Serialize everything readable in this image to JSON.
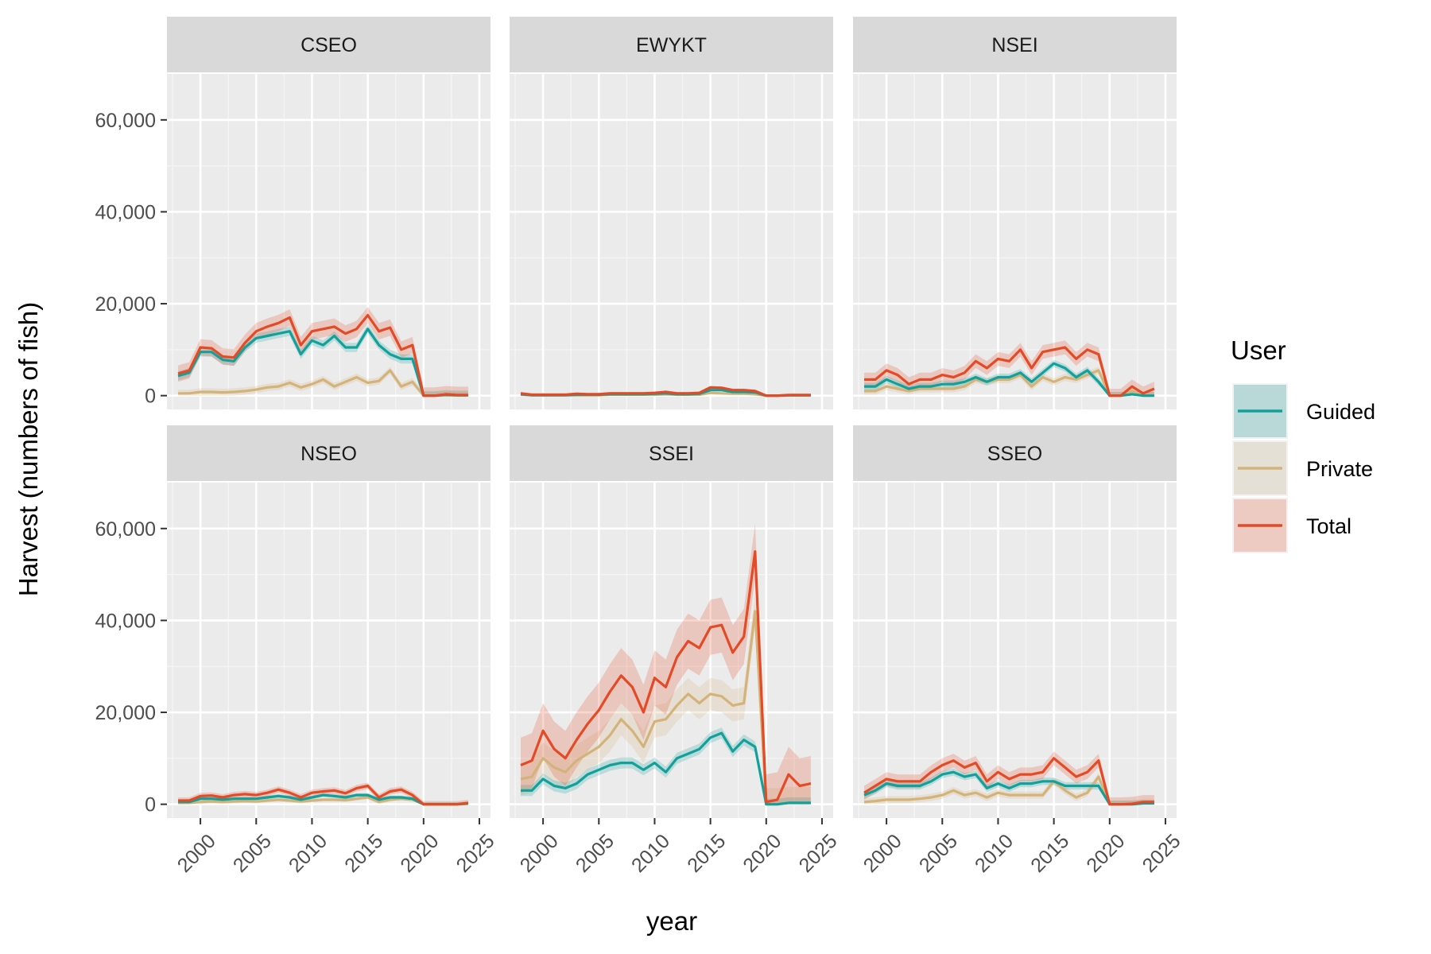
{
  "chart_data": {
    "type": "line",
    "xlabel": "year",
    "ylabel": "Harvest (numbers of fish)",
    "xlim": [
      1997,
      2026
    ],
    "ylim": [
      -3000,
      70000
    ],
    "x_ticks": [
      "2000",
      "2005",
      "2010",
      "2015",
      "2020",
      "2025"
    ],
    "y_ticks": [
      "0",
      "20,000",
      "40,000",
      "60,000"
    ],
    "grid": true,
    "legend": {
      "title": "User",
      "position": "right",
      "entries": [
        {
          "name": "Guided",
          "color": "#12A09A",
          "fill": "#B9D9D9"
        },
        {
          "name": "Private",
          "color": "#D4B37A",
          "fill": "#E4E0D6"
        },
        {
          "name": "Total",
          "color": "#E34A25",
          "fill": "#EDCBC3"
        }
      ]
    },
    "years": [
      1998,
      1999,
      2000,
      2001,
      2002,
      2003,
      2004,
      2005,
      2006,
      2007,
      2008,
      2009,
      2010,
      2011,
      2012,
      2013,
      2014,
      2015,
      2016,
      2017,
      2018,
      2019,
      2020,
      2021,
      2022,
      2023,
      2024
    ],
    "panels": [
      {
        "name": "CSEO",
        "series": [
          {
            "name": "Guided",
            "values": [
              4300,
              5000,
              9500,
              9500,
              7800,
              7500,
              10500,
              12500,
              13000,
              13500,
              14000,
              9000,
              12000,
              11000,
              13000,
              10500,
              10500,
              14500,
              11000,
              9000,
              8000,
              8000,
              0,
              0,
              200,
              100,
              100
            ],
            "band": 1000
          },
          {
            "name": "Private",
            "values": [
              500,
              500,
              800,
              800,
              700,
              800,
              1000,
              1300,
              1800,
              2000,
              2800,
              1800,
              2500,
              3500,
              2000,
              3000,
              4000,
              2800,
              3200,
              5500,
              2000,
              3000,
              0,
              0,
              100,
              50,
              50
            ],
            "band": 800
          },
          {
            "name": "Total",
            "values": [
              4800,
              5500,
              10500,
              10300,
              8500,
              8300,
              11500,
              14000,
              15000,
              15800,
              17000,
              11000,
              14000,
              14500,
              15000,
              13500,
              14500,
              17500,
              14000,
              14800,
              10000,
              11000,
              0,
              0,
              300,
              150,
              150
            ],
            "band": 1800
          }
        ]
      },
      {
        "name": "EWYKT",
        "series": [
          {
            "name": "Guided",
            "values": [
              300,
              100,
              100,
              100,
              100,
              200,
              200,
              200,
              300,
              300,
              300,
              300,
              400,
              500,
              300,
              300,
              400,
              1200,
              1200,
              800,
              800,
              700,
              0,
              0,
              100,
              100,
              100
            ],
            "band": 150
          },
          {
            "name": "Private",
            "values": [
              200,
              100,
              100,
              100,
              100,
              100,
              100,
              100,
              200,
              200,
              200,
              200,
              200,
              300,
              200,
              200,
              200,
              600,
              500,
              400,
              400,
              300,
              0,
              0,
              50,
              50,
              50
            ],
            "band": 150
          },
          {
            "name": "Total",
            "values": [
              500,
              200,
              200,
              200,
              200,
              400,
              300,
              300,
              500,
              500,
              500,
              500,
              600,
              800,
              500,
              500,
              600,
              1800,
              1700,
              1200,
              1200,
              1000,
              0,
              0,
              150,
              150,
              150
            ],
            "band": 300
          }
        ]
      },
      {
        "name": "NSEI",
        "series": [
          {
            "name": "Guided",
            "values": [
              2000,
              2000,
              3500,
              2500,
              1500,
              2000,
              2000,
              2500,
              2500,
              3000,
              4000,
              3000,
              4000,
              4000,
              5000,
              3000,
              5000,
              7000,
              6000,
              4000,
              5500,
              3000,
              0,
              0,
              300,
              0,
              0
            ],
            "band": 800
          },
          {
            "name": "Private",
            "values": [
              1000,
              1000,
              2000,
              1500,
              1000,
              1500,
              1500,
              1500,
              1500,
              2000,
              3500,
              3000,
              3500,
              3500,
              4500,
              2000,
              4000,
              3000,
              4000,
              3500,
              4500,
              5500,
              0,
              0,
              1000,
              0,
              0
            ],
            "band": 800
          },
          {
            "name": "Total",
            "values": [
              3500,
              3500,
              5500,
              4500,
              2500,
              3500,
              3500,
              4500,
              4000,
              5000,
              7500,
              6000,
              8000,
              7500,
              10000,
              6000,
              9500,
              10000,
              10500,
              8000,
              10000,
              9000,
              0,
              0,
              2000,
              500,
              1500
            ],
            "band": 1500
          }
        ]
      },
      {
        "name": "NSEO",
        "series": [
          {
            "name": "Guided",
            "values": [
              500,
              500,
              1200,
              1200,
              1000,
              1200,
              1200,
              1200,
              1500,
              1800,
              1500,
              1000,
              1500,
              2000,
              1800,
              1500,
              2000,
              2000,
              1000,
              1500,
              1500,
              1200,
              0,
              0,
              0,
              0,
              200
            ],
            "band": 400
          },
          {
            "name": "Private",
            "values": [
              300,
              300,
              500,
              600,
              500,
              600,
              700,
              600,
              800,
              1000,
              800,
              600,
              800,
              1000,
              1000,
              900,
              1200,
              1500,
              500,
              1000,
              1200,
              1000,
              0,
              0,
              0,
              0,
              100
            ],
            "band": 400
          },
          {
            "name": "Total",
            "values": [
              800,
              800,
              1800,
              1900,
              1500,
              2000,
              2200,
              2000,
              2500,
              3200,
              2500,
              1500,
              2500,
              2800,
              3000,
              2400,
              3500,
              4000,
              1500,
              2800,
              3200,
              2000,
              0,
              0,
              0,
              0,
              300
            ],
            "band": 700
          }
        ]
      },
      {
        "name": "SSEI",
        "series": [
          {
            "name": "Guided",
            "values": [
              3000,
              3000,
              5500,
              4000,
              3500,
              4500,
              6500,
              7500,
              8500,
              9000,
              9000,
              7500,
              9000,
              7000,
              10000,
              11000,
              12000,
              14500,
              15500,
              11500,
              14000,
              12500,
              0,
              0,
              300,
              300,
              300
            ],
            "band": 1200
          },
          {
            "name": "Private",
            "values": [
              5500,
              6000,
              10000,
              8000,
              7000,
              9500,
              11000,
              12500,
              15000,
              18500,
              16000,
              12500,
              18000,
              18500,
              21500,
              24000,
              22000,
              24000,
              23500,
              21500,
              22000,
              42000,
              0,
              0,
              300,
              300,
              300
            ],
            "band": 3500
          },
          {
            "name": "Total",
            "values": [
              8500,
              9500,
              16000,
              12000,
              10000,
              14000,
              17500,
              20500,
              24500,
              28000,
              25500,
              20000,
              27500,
              25500,
              32000,
              35500,
              34000,
              38500,
              39000,
              33000,
              36500,
              55000,
              500,
              1000,
              6500,
              4000,
              4500
            ],
            "band": 6000
          }
        ]
      },
      {
        "name": "SSEO",
        "series": [
          {
            "name": "Guided",
            "values": [
              2000,
              3000,
              4500,
              4000,
              4000,
              4000,
              5000,
              6500,
              7000,
              6000,
              6500,
              3500,
              4500,
              3500,
              4500,
              4500,
              5000,
              5000,
              4000,
              4000,
              4000,
              4000,
              0,
              0,
              0,
              200,
              200
            ],
            "band": 800
          },
          {
            "name": "Private",
            "values": [
              500,
              700,
              1000,
              1000,
              1000,
              1200,
              1500,
              2000,
              3000,
              2000,
              2500,
              1500,
              2500,
              2000,
              2000,
              2000,
              2000,
              5000,
              3000,
              1500,
              2500,
              6000,
              0,
              0,
              0,
              200,
              200
            ],
            "band": 800
          },
          {
            "name": "Total",
            "values": [
              2500,
              4000,
              5500,
              5000,
              5000,
              5000,
              7000,
              8500,
              9500,
              8000,
              9000,
              5000,
              7000,
              5500,
              6500,
              6500,
              7000,
              10000,
              8000,
              6000,
              7000,
              9500,
              0,
              0,
              100,
              500,
              500
            ],
            "band": 1500
          }
        ]
      }
    ]
  }
}
